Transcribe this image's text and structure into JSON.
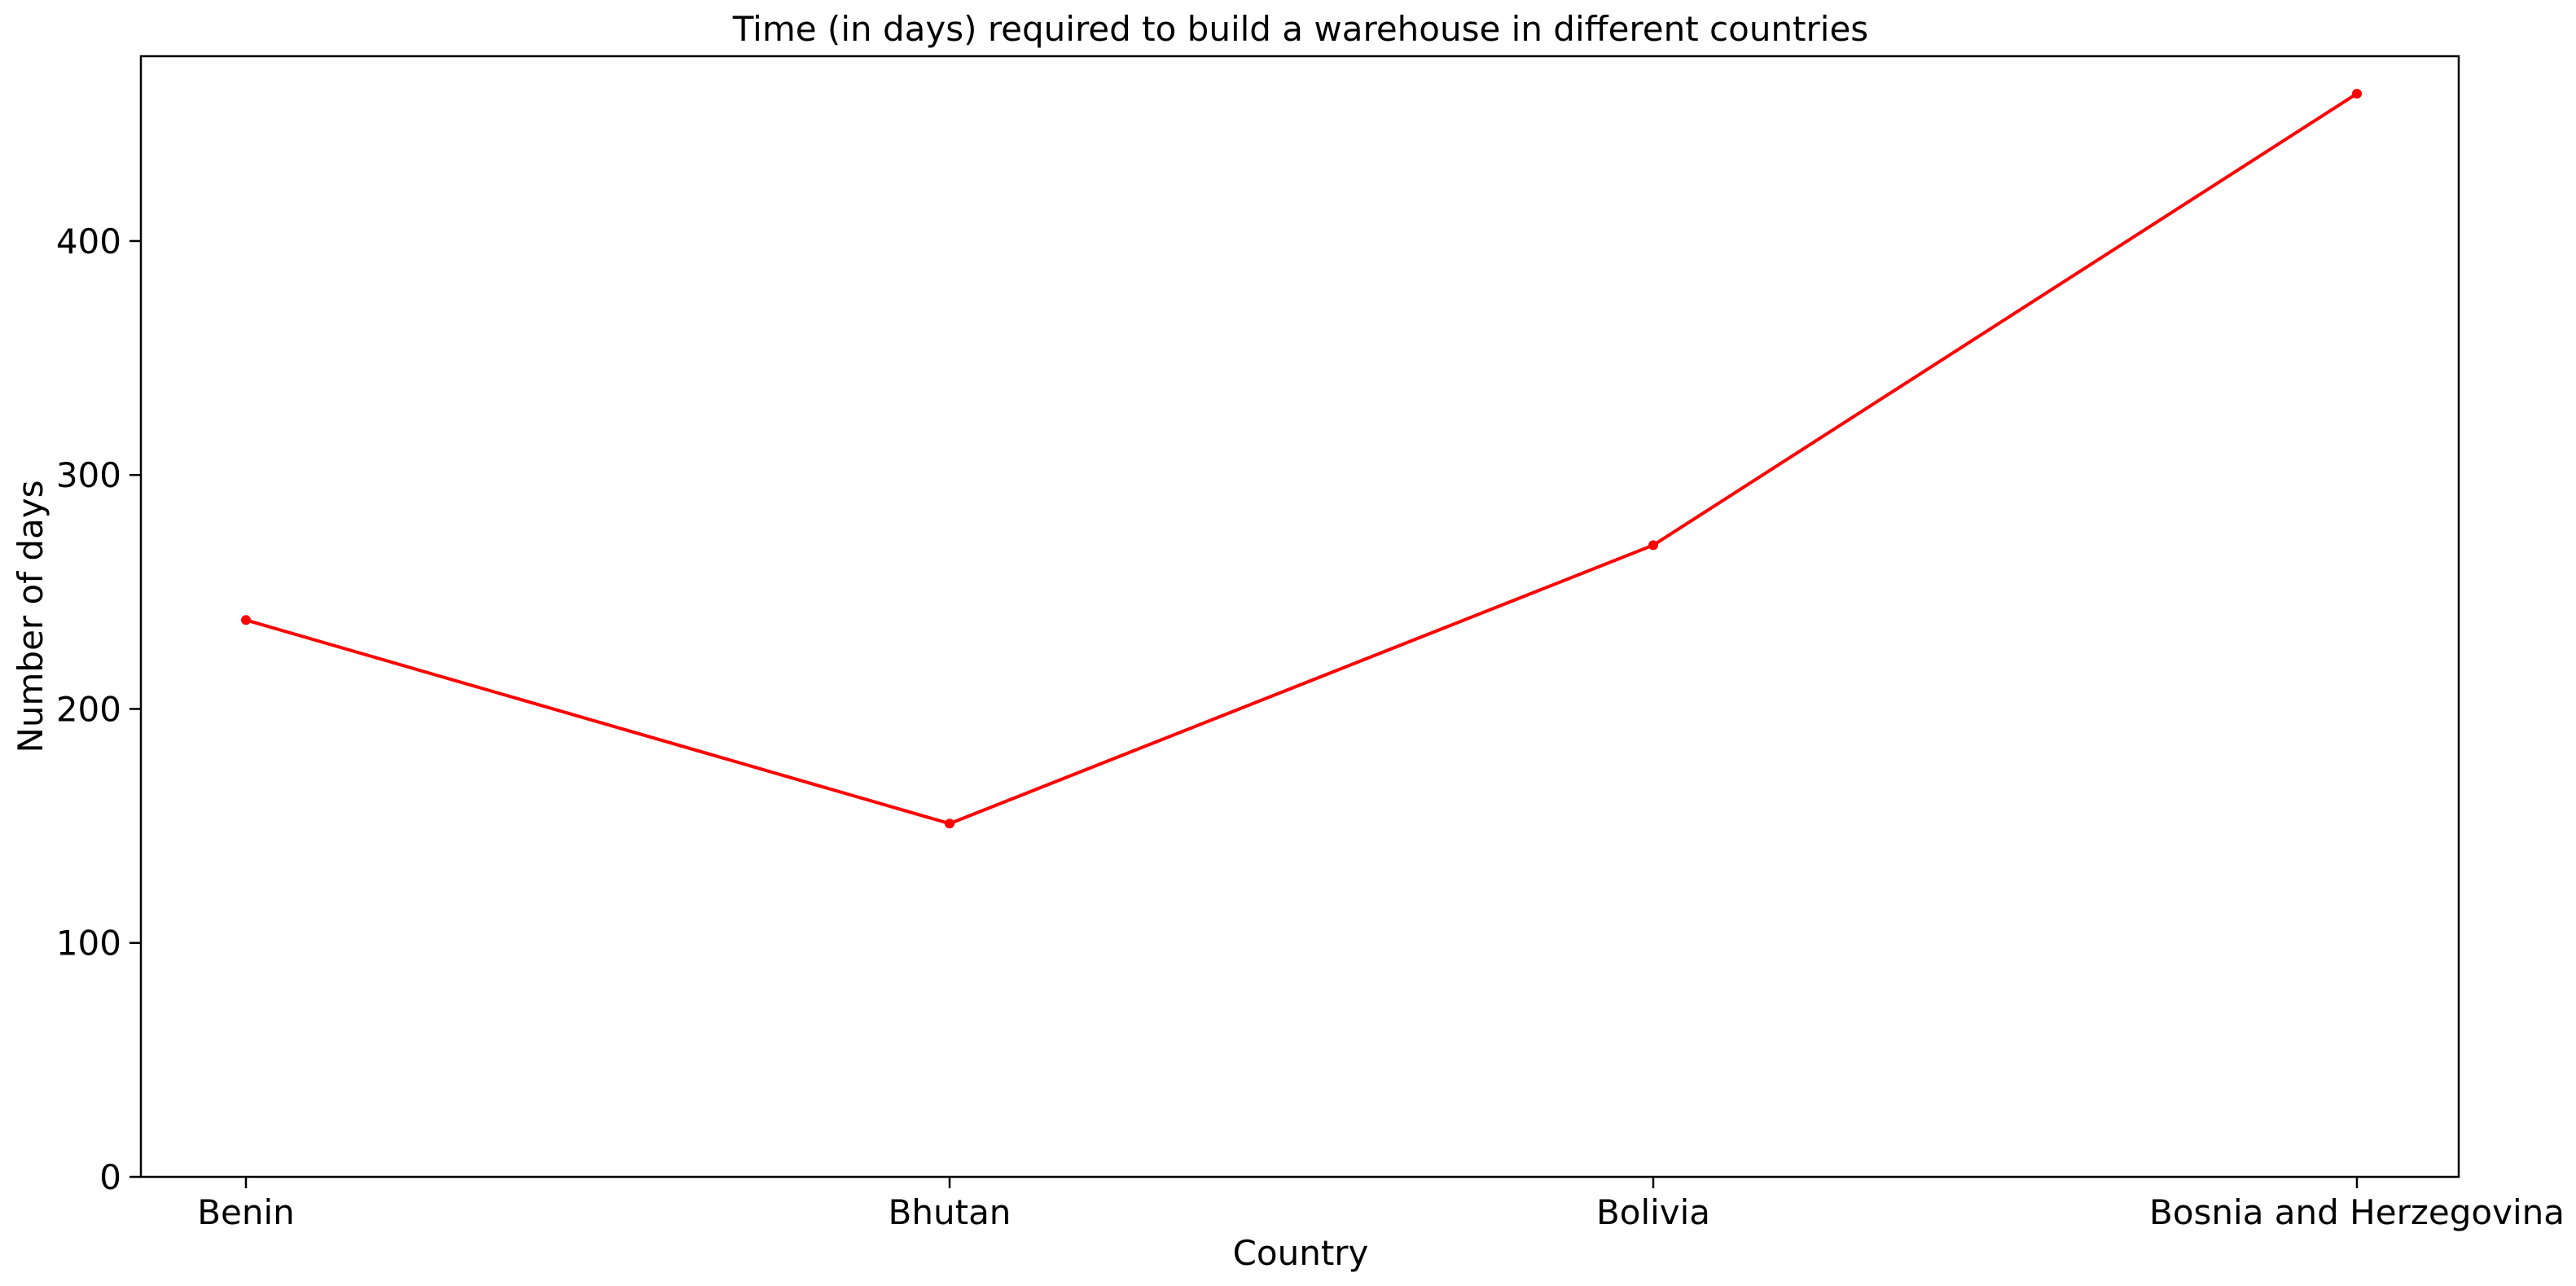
{
  "chart_data": {
    "type": "line",
    "title": "Time (in days) required to build a warehouse in different countries",
    "xlabel": "Country",
    "ylabel": "Number of days",
    "categories": [
      "Benin",
      "Bhutan",
      "Bolivia",
      "Bosnia and Herzegovina"
    ],
    "series": [
      {
        "values": [
          238,
          151,
          270,
          463
        ],
        "color": "#ff0000"
      }
    ],
    "ylim": [
      0,
      479
    ],
    "yticks": [
      "0",
      "100",
      "200",
      "300",
      "400"
    ],
    "grid": false,
    "legend": "none"
  }
}
